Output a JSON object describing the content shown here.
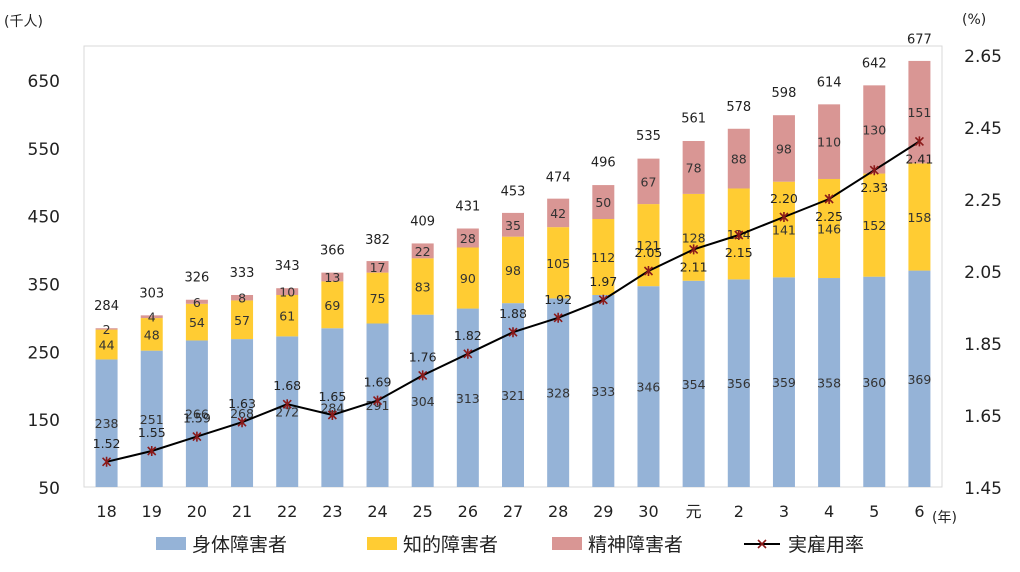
{
  "chart_data": {
    "type": "bar",
    "stacked": true,
    "ylabel_left": "(千人)",
    "ylabel_right": "(%)",
    "xlabel": "(年)",
    "categories": [
      "18",
      "19",
      "20",
      "21",
      "22",
      "23",
      "24",
      "25",
      "26",
      "27",
      "28",
      "29",
      "30",
      "元",
      "2",
      "3",
      "4",
      "5",
      "6"
    ],
    "series": [
      {
        "name": "身体障害者",
        "color": "#95b3d7",
        "values": [
          238,
          251,
          266,
          268,
          272,
          284,
          291,
          304,
          313,
          321,
          328,
          333,
          346,
          354,
          356,
          359,
          358,
          360,
          369
        ]
      },
      {
        "name": "知的障害者",
        "color": "#ffcc33",
        "values": [
          44,
          48,
          54,
          57,
          61,
          69,
          75,
          83,
          90,
          98,
          105,
          112,
          121,
          128,
          134,
          141,
          146,
          152,
          158
        ]
      },
      {
        "name": "精神障害者",
        "color": "#d99694",
        "values": [
          2,
          4,
          6,
          8,
          10,
          13,
          17,
          22,
          28,
          35,
          42,
          50,
          67,
          78,
          88,
          98,
          110,
          130,
          151
        ]
      }
    ],
    "totals": [
      284,
      303,
      326,
      333,
      343,
      366,
      382,
      409,
      431,
      453,
      474,
      496,
      535,
      561,
      578,
      598,
      614,
      642,
      677
    ],
    "line": {
      "name": "実雇用率",
      "color": "#000000",
      "marker_color": "#8b1a1a",
      "values": [
        1.52,
        1.55,
        1.59,
        1.63,
        1.68,
        1.65,
        1.69,
        1.76,
        1.82,
        1.88,
        1.92,
        1.97,
        2.05,
        2.11,
        2.15,
        2.2,
        2.25,
        2.33,
        2.41
      ],
      "value_labels": [
        "1.52",
        "1.55",
        "1.59",
        "1.63",
        "1.68",
        "1.65",
        "1.69",
        "1.76",
        "1.82",
        "1.88",
        "1.92",
        "1.97",
        "2.05",
        "2.11",
        "2.15",
        "2.20",
        "2.25",
        "2.33",
        "2.41"
      ]
    },
    "y_left": {
      "min": 50,
      "max": 700,
      "ticks": [
        50,
        150,
        250,
        350,
        450,
        550,
        650
      ]
    },
    "y_right": {
      "min": 1.45,
      "max": 2.675,
      "ticks": [
        "1.45",
        "1.65",
        "1.85",
        "2.05",
        "2.25",
        "2.45",
        "2.65"
      ]
    },
    "grid": false,
    "legend_position": "bottom"
  }
}
